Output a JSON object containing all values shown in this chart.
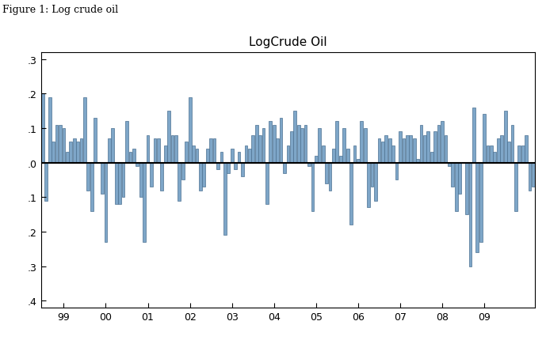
{
  "title": "LogCrude Oil",
  "figure_label": "Figure 1: Log crude oil",
  "bar_color": "#7EA6C8",
  "bar_edge_color": "#4A7090",
  "background_color": "#ffffff",
  "ylim": [
    -0.42,
    0.32
  ],
  "yticks": [
    0.3,
    0.2,
    0.1,
    0.0,
    -0.1,
    -0.2,
    -0.3,
    -0.4
  ],
  "ytick_labels": [
    ".3",
    ".2",
    ".1",
    ".0",
    ".1",
    ".2",
    ".3",
    ".4"
  ],
  "xtick_labels": [
    "99",
    "00",
    "01",
    "02",
    "03",
    "04",
    "05",
    "06",
    "07",
    "08",
    "09"
  ],
  "values": [
    0.2,
    -0.11,
    0.19,
    0.06,
    0.11,
    0.11,
    0.1,
    0.03,
    0.06,
    0.07,
    0.06,
    0.07,
    0.19,
    -0.08,
    -0.14,
    0.13,
    0.0,
    -0.09,
    -0.23,
    0.07,
    0.1,
    -0.12,
    -0.12,
    -0.1,
    0.12,
    0.03,
    0.04,
    -0.01,
    -0.1,
    -0.23,
    0.08,
    -0.07,
    0.07,
    0.07,
    -0.08,
    0.05,
    0.15,
    0.08,
    0.08,
    -0.11,
    -0.05,
    0.06,
    0.19,
    0.05,
    0.04,
    -0.08,
    -0.07,
    0.04,
    0.07,
    0.07,
    -0.02,
    0.03,
    -0.21,
    -0.03,
    0.04,
    -0.02,
    0.03,
    -0.04,
    0.05,
    0.04,
    0.08,
    0.11,
    0.08,
    0.1,
    -0.12,
    0.12,
    0.11,
    0.07,
    0.13,
    -0.03,
    0.05,
    0.09,
    0.15,
    0.11,
    0.1,
    0.11,
    -0.01,
    -0.14,
    0.02,
    0.1,
    0.05,
    -0.06,
    -0.08,
    0.04,
    0.12,
    0.02,
    0.1,
    0.04,
    -0.18,
    0.05,
    0.01,
    0.12,
    0.1,
    -0.13,
    -0.07,
    -0.11,
    0.07,
    0.06,
    0.08,
    0.07,
    0.05,
    -0.05,
    0.09,
    0.07,
    0.08,
    0.08,
    0.07,
    0.01,
    0.11,
    0.08,
    0.09,
    0.03,
    0.09,
    0.11,
    0.12,
    0.08,
    -0.01,
    -0.07,
    -0.14,
    -0.09,
    0.0,
    -0.15,
    -0.3,
    0.16,
    -0.26,
    -0.23,
    0.14,
    0.05,
    0.05,
    0.03,
    0.07,
    0.08,
    0.15,
    0.06,
    0.11,
    -0.14,
    0.05,
    0.05,
    0.08,
    -0.08,
    -0.07
  ],
  "start_month": 7,
  "title_fontsize": 11,
  "tick_fontsize": 9,
  "label_fontsize": 9
}
